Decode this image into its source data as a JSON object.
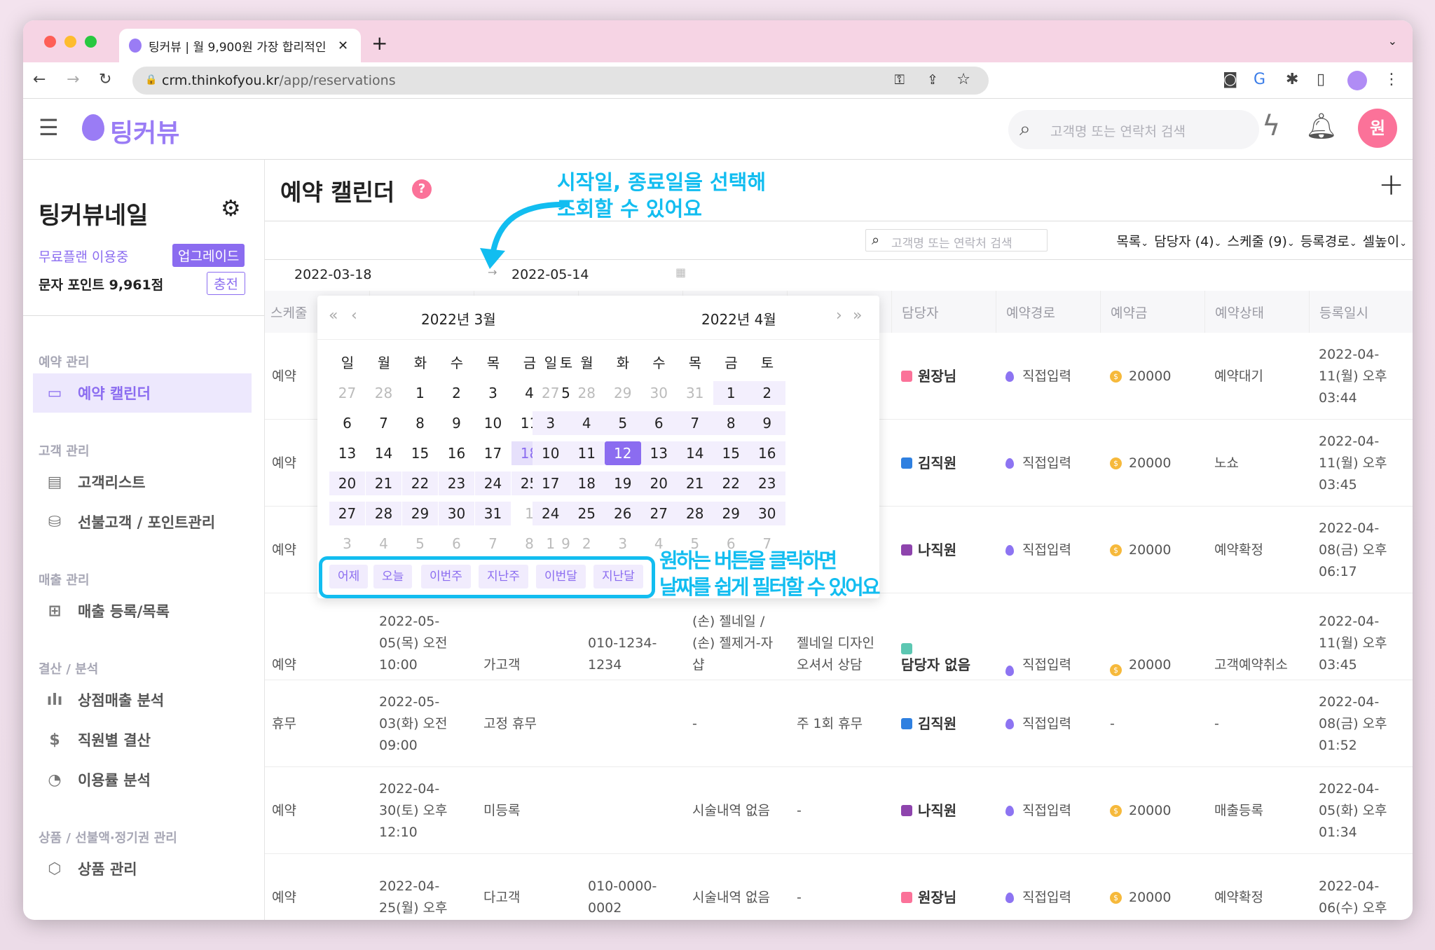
{
  "browser": {
    "tab_title": "팅커뷰 | 월 9,900원 가장 합리적인",
    "url_host": "crm.thinkofyou.kr",
    "url_path": "/app/reservations"
  },
  "app": {
    "logo": "팅커뷰",
    "search_placeholder": "고객명 또는 연락처 검색",
    "avatar": "원"
  },
  "sidebar": {
    "shop_name": "팅커뷰네일",
    "plan": "무료플랜 이용중",
    "upgrade": "업그레이드",
    "points": "문자 포인트 9,961점",
    "charge": "충전",
    "sections": [
      {
        "title": "예약 관리",
        "items": [
          {
            "label": "예약 캘린더",
            "icon": "calendar-icon",
            "active": true
          }
        ]
      },
      {
        "title": "고객 관리",
        "items": [
          {
            "label": "고객리스트",
            "icon": "document-icon"
          },
          {
            "label": "선불고객 / 포인트관리",
            "icon": "database-icon"
          }
        ]
      },
      {
        "title": "매출 관리",
        "items": [
          {
            "label": "매출 등록/목록",
            "icon": "file-plus-icon"
          }
        ]
      },
      {
        "title": "결산 / 분석",
        "items": [
          {
            "label": "상점매출 분석",
            "icon": "bar-chart-icon"
          },
          {
            "label": "직원별 결산",
            "icon": "dollar-icon"
          },
          {
            "label": "이용률 분석",
            "icon": "pie-chart-icon"
          }
        ]
      },
      {
        "title": "상품 / 선불액·정기권 관리",
        "items": [
          {
            "label": "상품 관리",
            "icon": "box-icon"
          }
        ]
      }
    ]
  },
  "main": {
    "title": "예약 캘린더",
    "search_placeholder": "고객명 또는 연락처 검색",
    "filters": [
      "목록",
      "담당자 (4)",
      "스케줄 (9)",
      "등록경로",
      "셀높이"
    ],
    "date_start": "2022-03-18",
    "date_end": "2022-05-14",
    "columns": [
      "스케줄",
      "",
      "",
      "",
      "",
      "",
      "담당자",
      "예약경로",
      "예약금",
      "예약상태",
      "등록일시"
    ],
    "rows": [
      {
        "type": "예약",
        "staff": "원장님",
        "staff_color": "#fb7299",
        "route": "직접입력",
        "deposit": "20000",
        "status": "예약대기",
        "registered": "2022-04-11(월) 오후 03:44"
      },
      {
        "type": "예약",
        "staff": "김직원",
        "staff_color": "#2f80e0",
        "route": "직접입력",
        "deposit": "20000",
        "status": "노쇼",
        "registered": "2022-04-11(월) 오후 03:45"
      },
      {
        "type": "예약",
        "staff": "나직원",
        "staff_color": "#8e44ad",
        "route": "직접입력",
        "deposit": "20000",
        "status": "예약확정",
        "registered": "2022-04-08(금) 오후 06:17"
      },
      {
        "type": "예약",
        "datetime": "2022-05-05(목) 오전 10:00",
        "customer": "가고객",
        "phone": "010-1234-1234",
        "service": "(손) 젤네일 / (손) 젤제거-자샵",
        "memo": "젤네일 디자인 오셔서 상담",
        "staff": "담당자 없음",
        "staff_color": "#5cc7b2",
        "route": "직접입력",
        "deposit": "20000",
        "status": "고객예약취소",
        "registered": "2022-04-11(월) 오후 03:45"
      },
      {
        "type": "휴무",
        "datetime": "2022-05-03(화) 오전 09:00",
        "customer": "고정 휴무",
        "phone": "",
        "service": "-",
        "memo": "주 1회 휴무",
        "staff": "김직원",
        "staff_color": "#2f80e0",
        "route": "직접입력",
        "deposit": "-",
        "status": "-",
        "registered": "2022-04-08(금) 오후 01:52"
      },
      {
        "type": "예약",
        "datetime": "2022-04-30(토) 오후 12:10",
        "customer": "미등록",
        "phone": "",
        "service": "시술내역 없음",
        "memo": "-",
        "staff": "나직원",
        "staff_color": "#8e44ad",
        "route": "직접입력",
        "deposit": "20000",
        "status": "매출등록",
        "registered": "2022-04-05(화) 오후 01:34"
      },
      {
        "type": "예약",
        "datetime": "2022-04-25(월) 오후",
        "customer": "다고객",
        "phone": "010-0000-0002",
        "service": "시술내역 없음",
        "memo": "-",
        "staff": "원장님",
        "staff_color": "#fb7299",
        "route": "직접입력",
        "deposit": "20000",
        "status": "예약확정",
        "registered": "2022-04-06(수) 오후"
      }
    ]
  },
  "calendar": {
    "left_title": "2022년 3월",
    "right_title": "2022년 4월",
    "weekdays": [
      "일",
      "월",
      "화",
      "수",
      "목",
      "금",
      "토"
    ],
    "range_start": "2022-03-18",
    "today": "2022-04-12",
    "quick_buttons": [
      "어제",
      "오늘",
      "이번주",
      "지난주",
      "이번달",
      "지난달"
    ]
  },
  "annotations": {
    "top": "시작일, 종료일을 선택해\n조회할 수 있어요",
    "bottom": "원하는 버튼을 클릭하면\n날짜를 쉽게 필터할 수 있어요",
    "color": "#12bdf0"
  },
  "colors": {
    "accent": "#8b6cf0",
    "avatar": "#fb7299",
    "tabbar": "#f6d4e4"
  }
}
